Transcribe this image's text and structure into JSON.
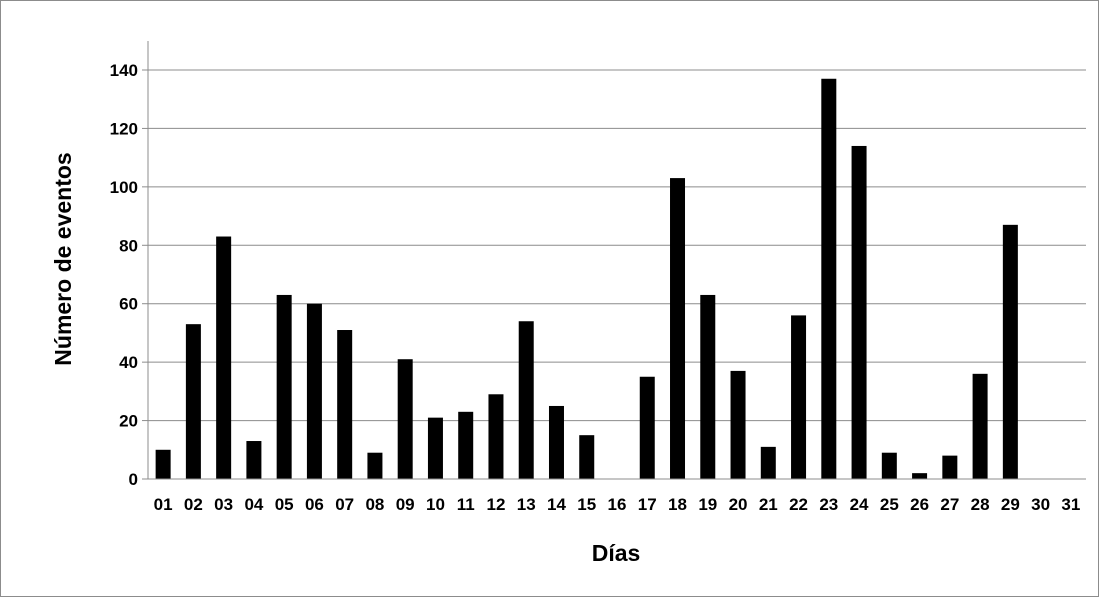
{
  "chart_data": {
    "type": "bar",
    "title": "",
    "xlabel": "Días",
    "ylabel": "Número de eventos",
    "categories": [
      "01",
      "02",
      "03",
      "04",
      "05",
      "06",
      "07",
      "08",
      "09",
      "10",
      "11",
      "12",
      "13",
      "14",
      "15",
      "16",
      "17",
      "18",
      "19",
      "20",
      "21",
      "22",
      "23",
      "24",
      "25",
      "26",
      "27",
      "28",
      "29",
      "30",
      "31"
    ],
    "values": [
      10,
      53,
      83,
      13,
      63,
      60,
      51,
      9,
      41,
      21,
      23,
      29,
      54,
      25,
      15,
      0,
      35,
      103,
      63,
      37,
      11,
      56,
      137,
      114,
      9,
      2,
      8,
      36,
      87,
      0,
      0
    ],
    "ylim": [
      0,
      150
    ],
    "yticks": [
      0,
      20,
      40,
      60,
      80,
      100,
      120,
      140
    ],
    "grid": true,
    "legend": "none",
    "bar_color": "#000000",
    "grid_color": "#8c8c8c"
  }
}
